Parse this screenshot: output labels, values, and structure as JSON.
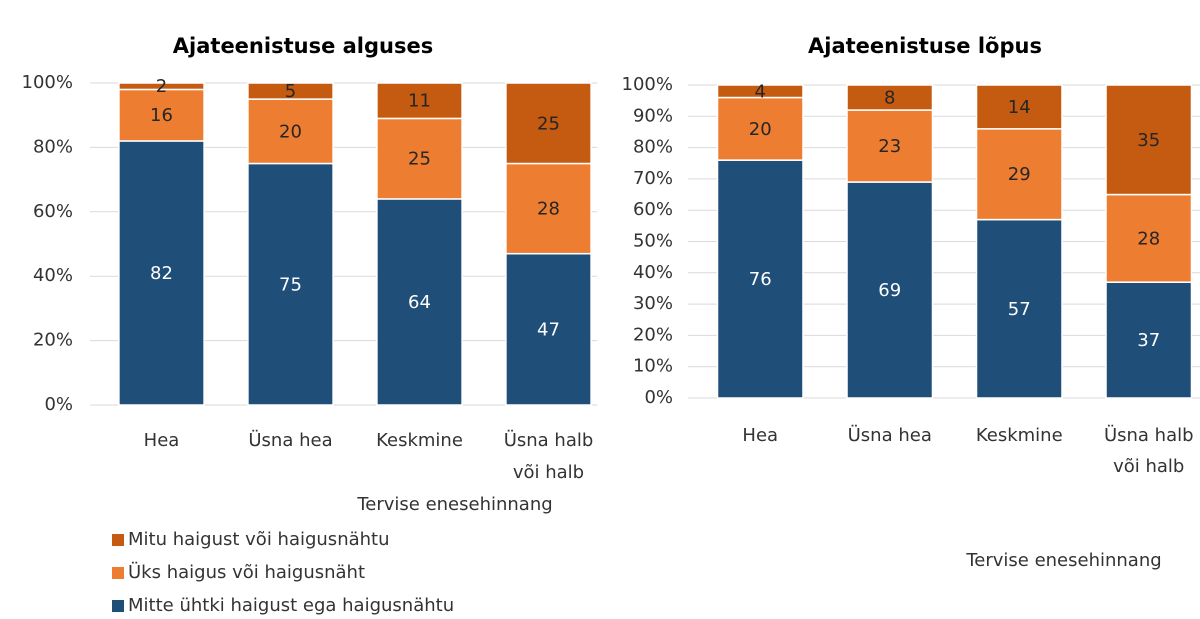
{
  "chart_data": [
    {
      "type": "stacked_bar",
      "title": "Ajateenistuse alguses",
      "categories": [
        [
          "Hea"
        ],
        [
          "Üsna hea"
        ],
        [
          "Keskmine"
        ],
        [
          "Üsna halb",
          "või halb"
        ]
      ],
      "x_label": "Tervise enesehinnang",
      "series": [
        {
          "name": "Mitte ühtki haigust ega haigusnähtu",
          "color": "#1f4e79",
          "label_color": "#ffffff",
          "values": [
            82,
            75,
            64,
            47
          ]
        },
        {
          "name": "Üks haigus või haigusnäht",
          "color": "#ed7d31",
          "label_color": "#262626",
          "values": [
            16,
            20,
            25,
            28
          ]
        },
        {
          "name": "Mitu haigust või haigusnähtu",
          "color": "#c55a11",
          "label_color": "#262626",
          "values": [
            2,
            5,
            11,
            25
          ]
        }
      ],
      "ylim": [
        0,
        100
      ],
      "yticks": [
        {
          "value": 0,
          "label": "0%"
        },
        {
          "value": 20,
          "label": "20%"
        },
        {
          "value": 40,
          "label": "40%"
        },
        {
          "value": 60,
          "label": "60%"
        },
        {
          "value": 80,
          "label": "80%"
        },
        {
          "value": 100,
          "label": "100%"
        }
      ],
      "grid": true,
      "legend": "bottom-left"
    },
    {
      "type": "stacked_bar",
      "title": "Ajateenistuse lõpus",
      "categories": [
        [
          "Hea"
        ],
        [
          "Üsna hea"
        ],
        [
          "Keskmine"
        ],
        [
          "Üsna halb",
          "või halb"
        ]
      ],
      "x_label": "Tervise enesehinnang",
      "series": [
        {
          "color": "#1f4e79",
          "label_color": "#ffffff",
          "values": [
            76,
            69,
            57,
            37
          ]
        },
        {
          "color": "#ed7d31",
          "label_color": "#262626",
          "values": [
            20,
            23,
            29,
            28
          ]
        },
        {
          "color": "#c55a11",
          "label_color": "#262626",
          "values": [
            4,
            8,
            14,
            35
          ]
        }
      ],
      "ylim": [
        0,
        100
      ],
      "yticks": [
        {
          "value": 0,
          "label": "0%"
        },
        {
          "value": 10,
          "label": "10%"
        },
        {
          "value": 20,
          "label": "20%"
        },
        {
          "value": 30,
          "label": "30%"
        },
        {
          "value": 40,
          "label": "40%"
        },
        {
          "value": 50,
          "label": "50%"
        },
        {
          "value": 60,
          "label": "60%"
        },
        {
          "value": 70,
          "label": "70%"
        },
        {
          "value": 80,
          "label": "80%"
        },
        {
          "value": 90,
          "label": "90%"
        },
        {
          "value": 100,
          "label": "100%"
        }
      ],
      "grid": true
    }
  ]
}
